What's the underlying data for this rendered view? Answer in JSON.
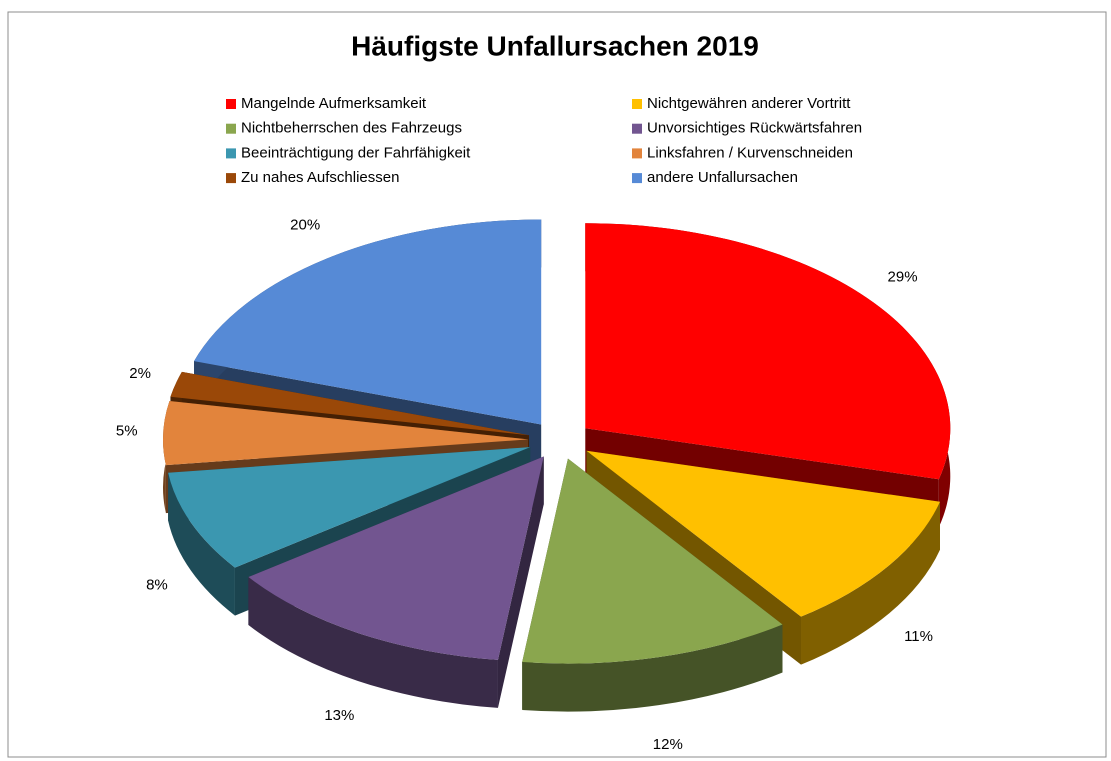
{
  "chart_data": {
    "type": "pie",
    "title": "Häufigste Unfallursachen 2019",
    "categories": [
      "Mangelnde Aufmerksamkeit",
      "Nichtgewähren anderer Vortritt",
      "Nichtbeherrschen des Fahrzeugs",
      "Unvorsichtiges Rückwärtsfahren",
      "Beeinträchtigung der Fahrfähigkeit",
      "Linksfahren / Kurvenschneiden",
      "Zu nahes Aufschliessen",
      "andere Unfallursachen"
    ],
    "values": [
      29,
      11,
      12,
      13,
      8,
      5,
      2,
      20
    ],
    "value_labels": [
      "29%",
      "11%",
      "12%",
      "13%",
      "8%",
      "5%",
      "2%",
      "20%"
    ],
    "colors": [
      "#ff0000",
      "#ffc000",
      "#8aa64e",
      "#725590",
      "#3b97b0",
      "#e2843c",
      "#9a4808",
      "#568ad6"
    ],
    "legend": "top"
  }
}
